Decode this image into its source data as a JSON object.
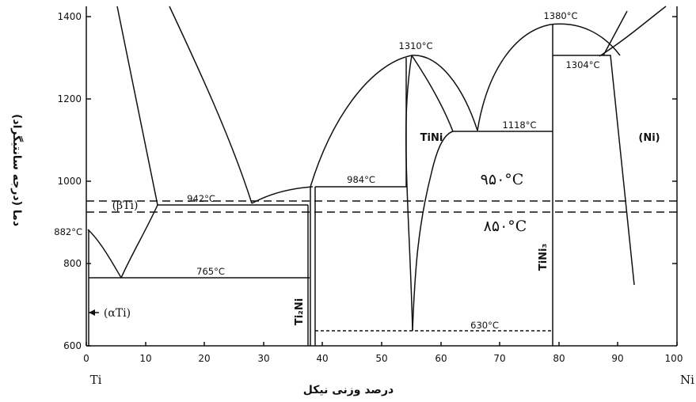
{
  "axes": {
    "x_title": "درصد وزنی نیکل",
    "y_title": "دما (درجه سانتیگراد)",
    "x_ticks": [
      "0",
      "10",
      "20",
      "30",
      "40",
      "50",
      "60",
      "70",
      "80",
      "90",
      "100"
    ],
    "y_ticks": [
      "600",
      "800",
      "1000",
      "1200",
      "1400"
    ],
    "left_end": "Ti",
    "right_end": "Ni"
  },
  "temperatures": {
    "t882": "882°C",
    "t942": "942°C",
    "t765": "765°C",
    "t984": "984°C",
    "t1310": "1310°C",
    "t1118": "1118°C",
    "t1380": "1380°C",
    "t1304": "1304°C",
    "t630": "630°C"
  },
  "phases": {
    "beta_ti": "(βTi)",
    "alpha_ti": "(αTi)",
    "tini": "TiNi",
    "ni": "(Ni)",
    "ti2ni": "Ti₂Ni",
    "tini3": "TiNi₃"
  },
  "annotations": {
    "line_950": "۹۵۰°C",
    "line_850": "۸۵۰°C"
  },
  "chart_data": {
    "type": "phase_diagram",
    "xlabel": "درصد وزنی نیکل",
    "ylabel": "دما (درجه سانتیگراد)",
    "xlim": [
      0,
      100
    ],
    "ylim": [
      600,
      1400
    ],
    "dashed_reference_lines": [
      950,
      850
    ],
    "invariants": [
      {
        "label": "882°C",
        "temperature": 882,
        "x": 0
      },
      {
        "label": "942°C",
        "temperature": 942,
        "x": [
          12,
          38
        ]
      },
      {
        "label": "765°C",
        "temperature": 765,
        "x": [
          0,
          38
        ]
      },
      {
        "label": "984°C",
        "temperature": 984,
        "x": [
          38,
          55
        ]
      },
      {
        "label": "1310°C",
        "temperature": 1310,
        "x": 55
      },
      {
        "label": "1118°C",
        "temperature": 1118,
        "x": [
          62,
          79
        ]
      },
      {
        "label": "1380°C",
        "temperature": 1380,
        "x": 79
      },
      {
        "label": "1304°C",
        "temperature": 1304,
        "x": [
          79,
          87
        ]
      },
      {
        "label": "630°C",
        "temperature": 630,
        "x": [
          38,
          79
        ]
      }
    ],
    "compounds": [
      {
        "name": "Ti₂Ni",
        "x": 38
      },
      {
        "name": "TiNi",
        "x": 55
      },
      {
        "name": "TiNi₃",
        "x": 79
      }
    ]
  }
}
